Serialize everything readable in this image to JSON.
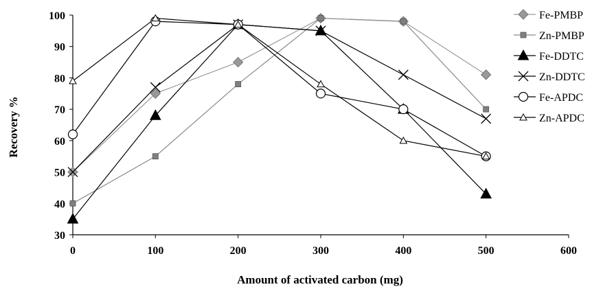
{
  "chart_data": {
    "type": "line",
    "xlabel": "Amount of activated carbon (mg)",
    "ylabel": "Recovery %",
    "xlim": [
      0,
      600
    ],
    "ylim": [
      30,
      100
    ],
    "xticks": [
      0,
      100,
      200,
      300,
      400,
      500,
      600
    ],
    "yticks": [
      30,
      40,
      50,
      60,
      70,
      80,
      90,
      100
    ],
    "grid": false,
    "legend_position": "right",
    "series": [
      {
        "name": "Fe-PMBP",
        "marker": "diamond",
        "marker_fill": "#999999",
        "line_color": "#9a9a9a",
        "x": [
          0,
          100,
          200,
          300,
          400,
          500
        ],
        "y": [
          50,
          75,
          85,
          99,
          98,
          81
        ]
      },
      {
        "name": "Zn-PMBP",
        "marker": "square",
        "marker_fill": "#808080",
        "line_color": "#8a8a8a",
        "x": [
          0,
          100,
          200,
          300,
          400,
          500
        ],
        "y": [
          40,
          55,
          78,
          99,
          98,
          70
        ]
      },
      {
        "name": "Fe-DDTC",
        "marker": "triangle-filled",
        "marker_fill": "#000000",
        "line_color": "#000000",
        "x": [
          0,
          100,
          200,
          300,
          400,
          500
        ],
        "y": [
          35,
          68,
          97,
          95,
          70,
          43
        ]
      },
      {
        "name": "Zn-DDTC",
        "marker": "x",
        "marker_fill": "none",
        "line_color": "#000000",
        "x": [
          0,
          100,
          200,
          300,
          400,
          500
        ],
        "y": [
          50,
          77,
          97,
          95,
          81,
          67
        ]
      },
      {
        "name": "Fe-APDC",
        "marker": "circle-open",
        "marker_fill": "#ffffff",
        "line_color": "#000000",
        "x": [
          0,
          100,
          200,
          300,
          400,
          500
        ],
        "y": [
          62,
          98,
          97,
          75,
          70,
          55
        ]
      },
      {
        "name": "Zn-APDC",
        "marker": "triangle-open",
        "marker_fill": "#ffffff",
        "line_color": "#000000",
        "x": [
          0,
          100,
          200,
          300,
          400,
          500
        ],
        "y": [
          79,
          99,
          97,
          78,
          60,
          55
        ]
      }
    ]
  }
}
